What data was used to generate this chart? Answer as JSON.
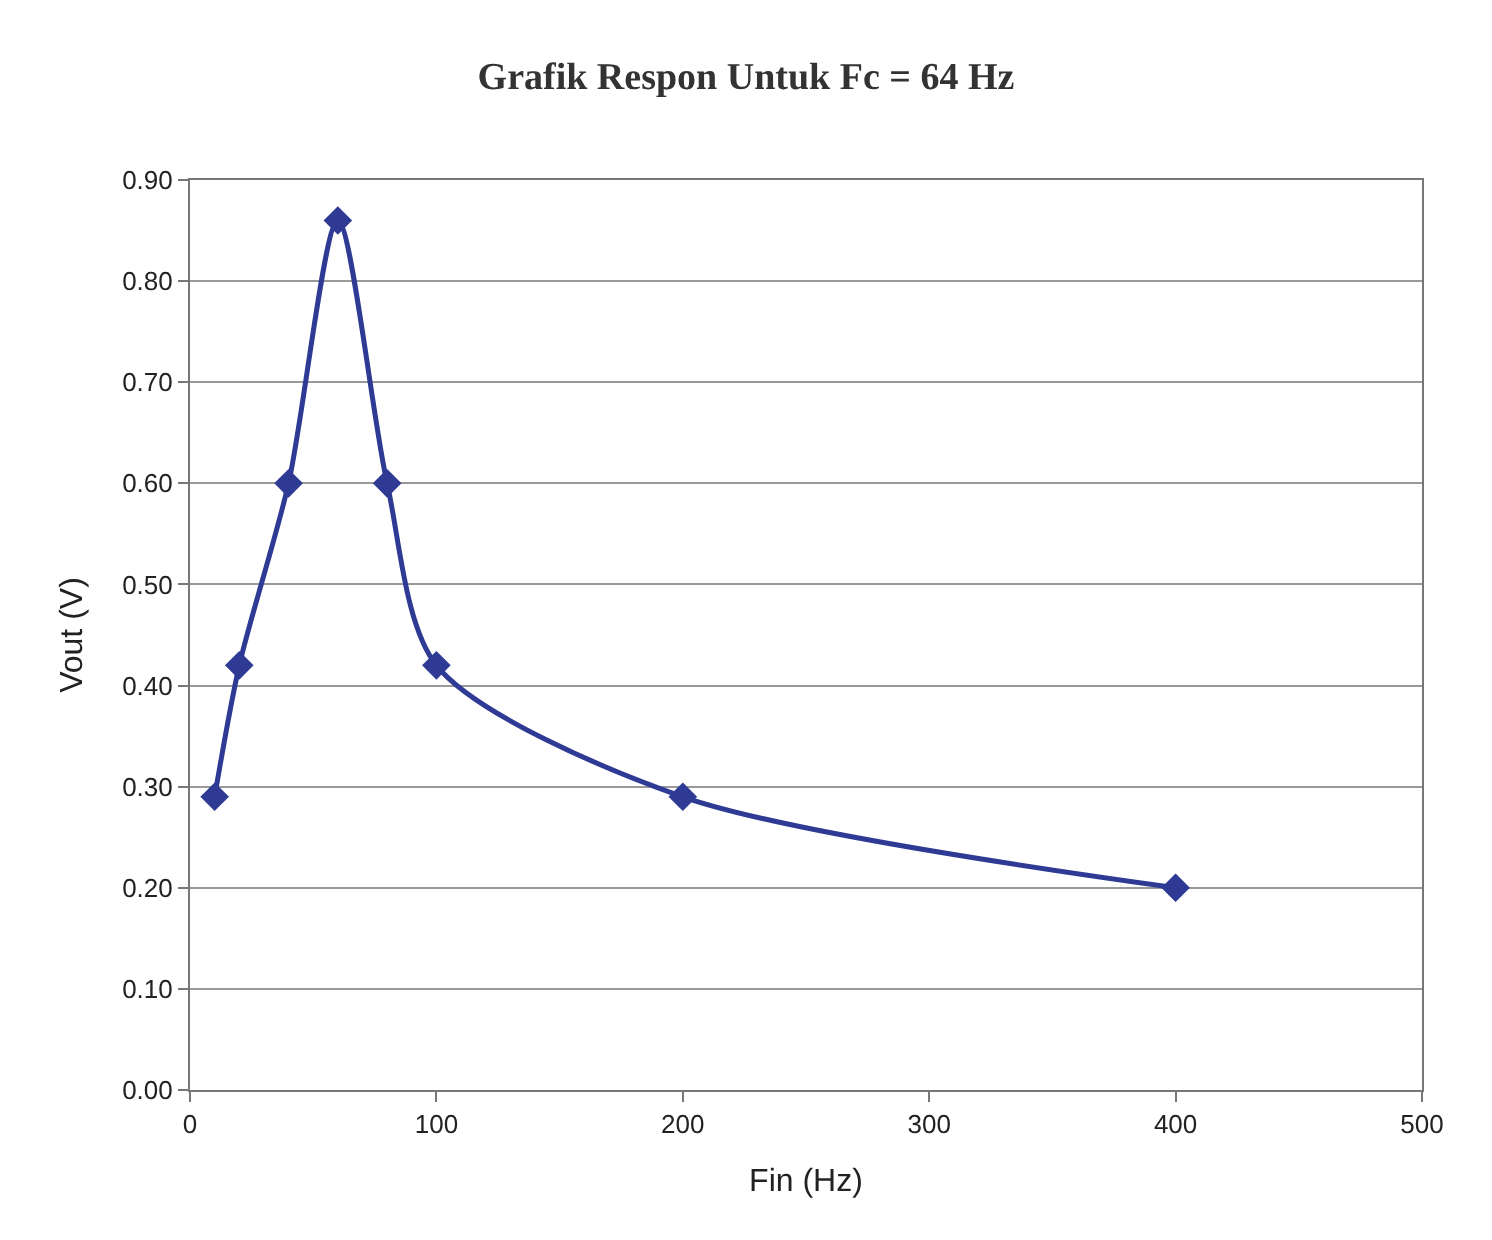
{
  "chart_data": {
    "type": "line",
    "title": "Grafik Respon Untuk Fc = 64 Hz",
    "xlabel": "Fin (Hz)",
    "ylabel": "Vout (V)",
    "x": [
      10,
      20,
      40,
      60,
      80,
      100,
      200,
      400
    ],
    "series": [
      {
        "color": "#2e3a94",
        "values": [
          0.29,
          0.42,
          0.6,
          0.86,
          0.6,
          0.42,
          0.29,
          0.2
        ]
      }
    ],
    "xlim": [
      0,
      500
    ],
    "xticks": [
      0,
      100,
      200,
      300,
      400,
      500
    ],
    "ylim": [
      0,
      0.9
    ],
    "yticks": [
      {
        "value": 0,
        "label": "0.00"
      },
      {
        "value": 0.1,
        "label": "0.10"
      },
      {
        "value": 0.2,
        "label": "0.20"
      },
      {
        "value": 0.3,
        "label": "0.30"
      },
      {
        "value": 0.4,
        "label": "0.40"
      },
      {
        "value": 0.5,
        "label": "0.50"
      },
      {
        "value": 0.6,
        "label": "0.60"
      },
      {
        "value": 0.7,
        "label": "0.70"
      },
      {
        "value": 0.8,
        "label": "0.80"
      },
      {
        "value": 0.9,
        "label": "0.90"
      }
    ],
    "grid": "y",
    "marker": "diamond",
    "line_style": "solid"
  }
}
